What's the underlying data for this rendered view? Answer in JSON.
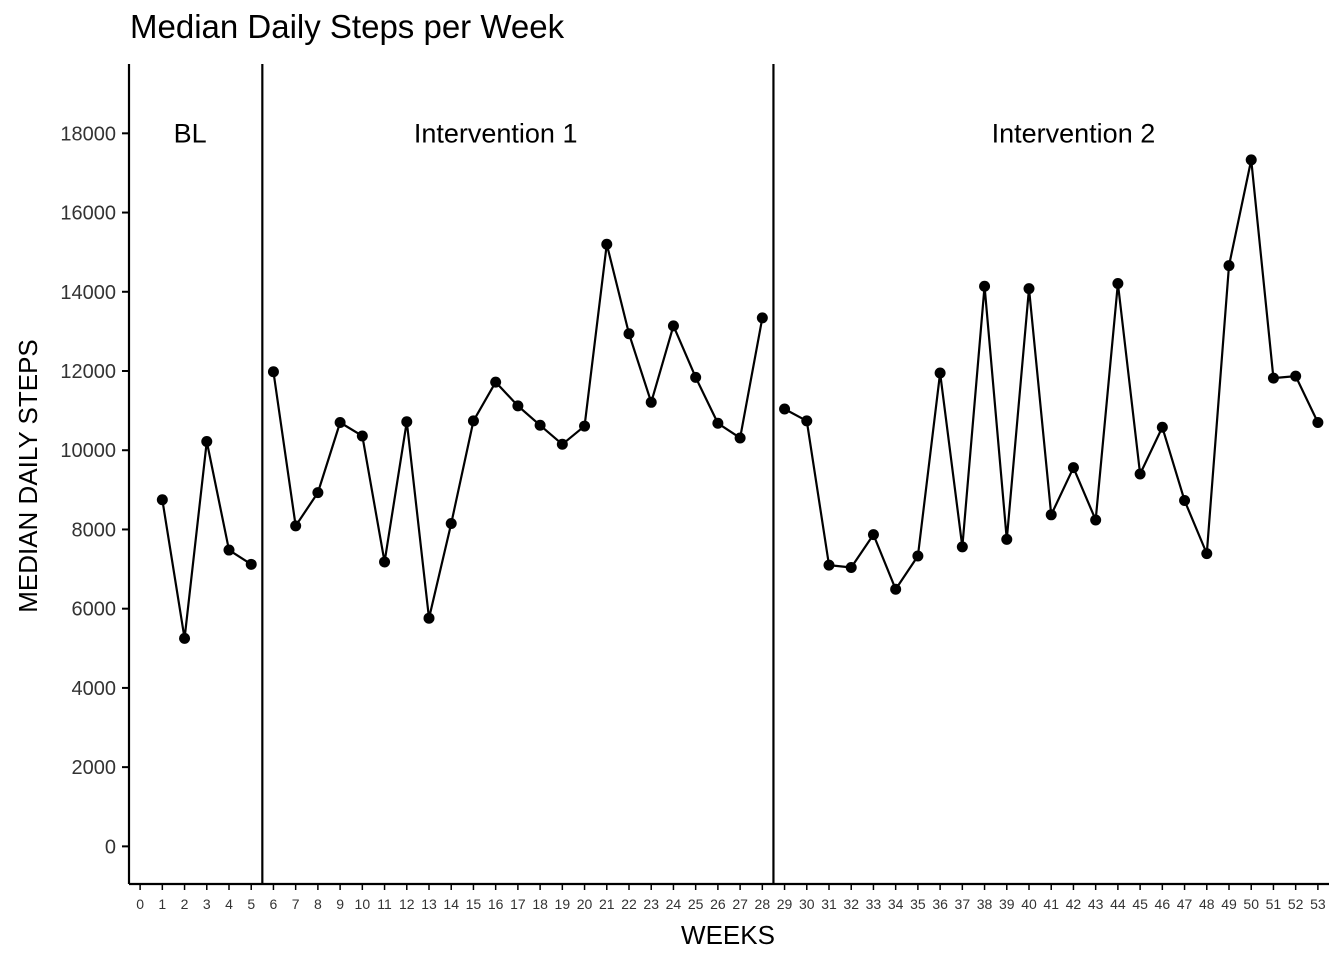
{
  "chart_data": {
    "type": "line",
    "title": "Median Daily Steps per Week",
    "xlabel": "WEEKS",
    "ylabel": "MEDIAN DAILY STEPS",
    "xlim": [
      -0.5,
      53.5
    ],
    "ylim": [
      -950,
      19750
    ],
    "x_ticks": [
      0,
      1,
      2,
      3,
      4,
      5,
      6,
      7,
      8,
      9,
      10,
      11,
      12,
      13,
      14,
      15,
      16,
      17,
      18,
      19,
      20,
      21,
      22,
      23,
      24,
      25,
      26,
      27,
      28,
      29,
      30,
      31,
      32,
      33,
      34,
      35,
      36,
      37,
      38,
      39,
      40,
      41,
      42,
      43,
      44,
      45,
      46,
      47,
      48,
      49,
      50,
      51,
      52,
      53
    ],
    "y_ticks": [
      0,
      2000,
      4000,
      6000,
      8000,
      10000,
      12000,
      14000,
      16000,
      18000
    ],
    "phase_lines": [
      5.5,
      28.5
    ],
    "phases": [
      {
        "label": "BL",
        "x": 2.25,
        "y": 18000
      },
      {
        "label": "Intervention 1",
        "x": 16,
        "y": 18000
      },
      {
        "label": "Intervention 2",
        "x": 42,
        "y": 18000
      }
    ],
    "segments": [
      {
        "x": [
          1,
          2,
          3,
          4,
          5
        ],
        "y": [
          8750,
          5250,
          10220,
          7480,
          7120
        ]
      },
      {
        "x": [
          6,
          7,
          8,
          9,
          10,
          11,
          12,
          13,
          14,
          15,
          16,
          17,
          18,
          19,
          20,
          21,
          22,
          23,
          24,
          25,
          26,
          27,
          28
        ],
        "y": [
          11980,
          8090,
          8930,
          10700,
          10360,
          7180,
          10720,
          5760,
          8150,
          10740,
          11720,
          11120,
          10630,
          10150,
          10610,
          15200,
          12940,
          11210,
          13140,
          11840,
          10680,
          10310,
          13340
        ]
      },
      {
        "x": [
          29,
          30,
          31,
          32,
          33,
          34,
          35,
          36,
          37,
          38,
          39,
          40,
          41,
          42,
          43,
          44,
          45,
          46,
          47,
          48,
          49,
          50,
          51,
          52,
          53
        ],
        "y": [
          11040,
          10740,
          7100,
          7040,
          7870,
          6490,
          7330,
          11950,
          7560,
          14140,
          7750,
          14080,
          8370,
          9560,
          8240,
          14210,
          9400,
          10580,
          8730,
          7390,
          14660,
          17330,
          11820,
          11870,
          10700
        ]
      }
    ],
    "grid": false,
    "legend": "none"
  }
}
